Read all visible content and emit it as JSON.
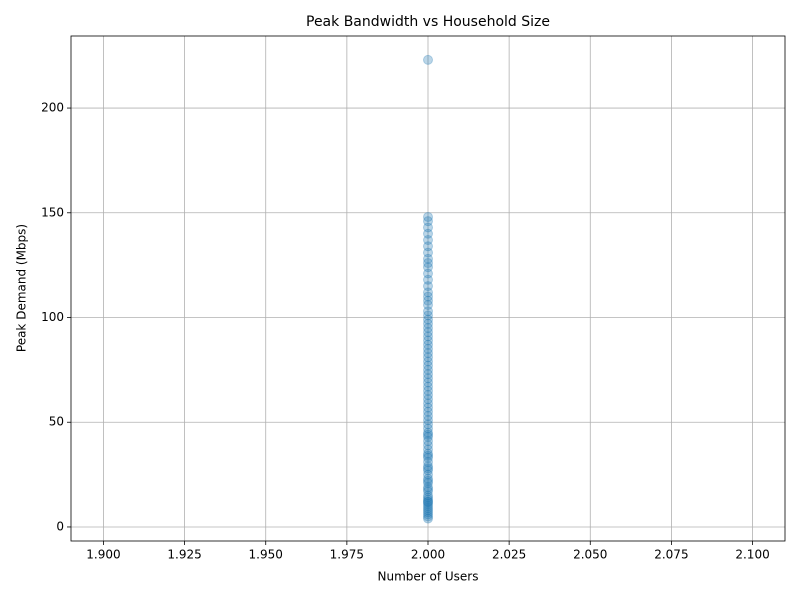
{
  "chart_data": {
    "type": "scatter",
    "title": "Peak Bandwidth vs Household Size",
    "x_label": "Number of Users",
    "y_label": "Peak Demand (Mbps)",
    "color": "#1f77b4",
    "grid": true,
    "xlim": [
      1.89,
      2.11
    ],
    "ylim": [
      -6.7,
      234.4
    ],
    "xticks": [
      {
        "value": 1.9,
        "label": "1.900"
      },
      {
        "value": 1.925,
        "label": "1.925"
      },
      {
        "value": 1.95,
        "label": "1.950"
      },
      {
        "value": 1.975,
        "label": "1.975"
      },
      {
        "value": 2.0,
        "label": "2.000"
      },
      {
        "value": 2.025,
        "label": "2.025"
      },
      {
        "value": 2.05,
        "label": "2.050"
      },
      {
        "value": 2.075,
        "label": "2.075"
      },
      {
        "value": 2.1,
        "label": "2.100"
      }
    ],
    "yticks": [
      0,
      50,
      100,
      150,
      200
    ],
    "x": [
      2,
      2,
      2,
      2,
      2,
      2,
      2,
      2,
      2,
      2,
      2,
      2,
      2,
      2,
      2,
      2,
      2,
      2,
      2,
      2,
      2,
      2,
      2,
      2,
      2,
      2,
      2,
      2,
      2,
      2,
      2,
      2,
      2,
      2,
      2,
      2,
      2,
      2,
      2,
      2,
      2,
      2,
      2,
      2,
      2,
      2,
      2,
      2,
      2,
      2,
      2,
      2,
      2,
      2,
      2,
      2,
      2,
      2,
      2,
      2,
      2,
      2,
      2,
      2,
      2,
      2,
      2,
      2,
      2,
      2,
      2,
      2,
      2,
      2,
      2,
      2,
      2,
      2,
      2,
      2
    ],
    "values": [
      223,
      148,
      146,
      143,
      140,
      137,
      134,
      131,
      128,
      126,
      124,
      121,
      118,
      115,
      112,
      110,
      108,
      106,
      103,
      101,
      99,
      97,
      95,
      93,
      91,
      89,
      87,
      85,
      83,
      81,
      79,
      77,
      75,
      73,
      71,
      69,
      67,
      65,
      63,
      61,
      59,
      57,
      55,
      53,
      51,
      49,
      47,
      45,
      43,
      41,
      39,
      37,
      35,
      33,
      31,
      29,
      27,
      25,
      23,
      21,
      19,
      17,
      15,
      14,
      13,
      12,
      11,
      10,
      9,
      8,
      7,
      6,
      5,
      4,
      12,
      18,
      22,
      28,
      34,
      44
    ]
  }
}
